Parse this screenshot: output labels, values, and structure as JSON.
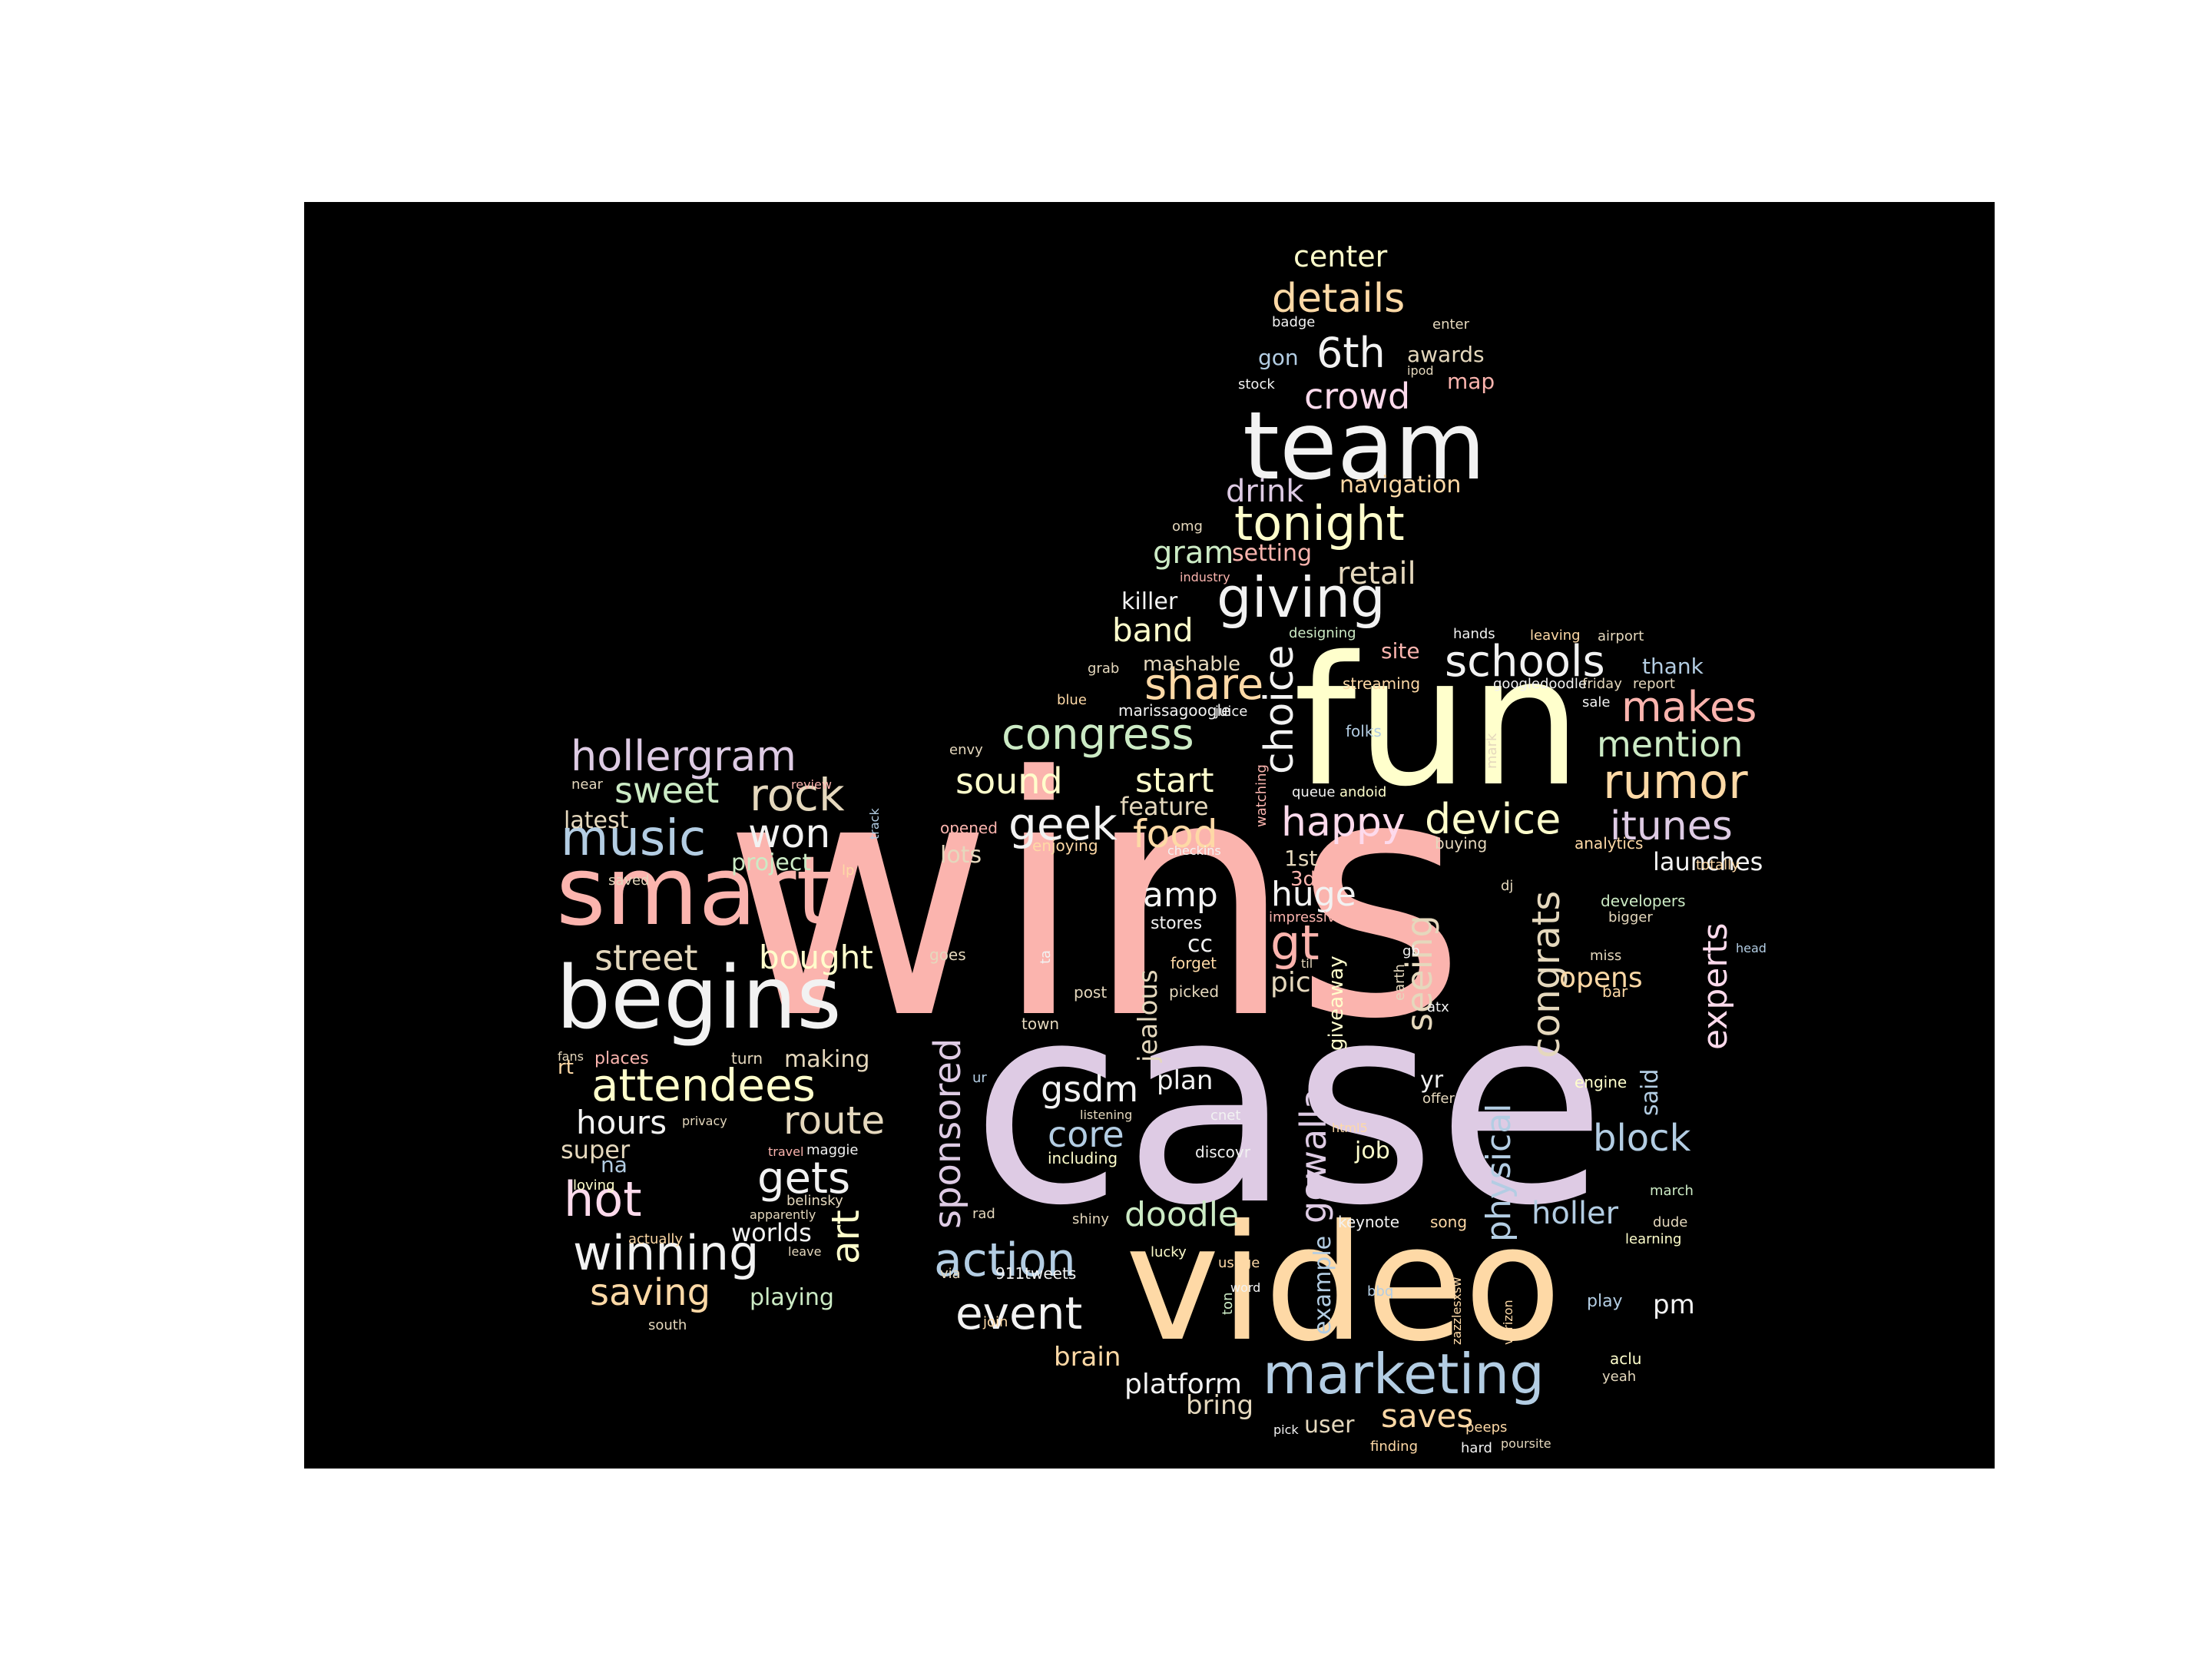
{
  "palette": [
    "#fbb4ae",
    "#b3cde3",
    "#ccebc5",
    "#decbe4",
    "#fed9a6",
    "#ffffcc",
    "#e5d8bd",
    "#fddaec",
    "#f2f2f2"
  ],
  "words": [
    {
      "text": "wins",
      "color": "#fbb4ae"
    },
    {
      "text": "case",
      "color": "#decbe4"
    },
    {
      "text": "fun",
      "color": "#ffffcc"
    },
    {
      "text": "video",
      "color": "#fed9a6"
    },
    {
      "text": "team",
      "color": "#f2f2f2"
    },
    {
      "text": "smart",
      "color": "#fbb4ae"
    },
    {
      "text": "begins",
      "color": "#f2f2f2"
    },
    {
      "text": "marketing",
      "color": "#b3cde3"
    },
    {
      "text": "tonight",
      "color": "#ffffcc"
    },
    {
      "text": "giving",
      "color": "#f2f2f2"
    },
    {
      "text": "schools",
      "color": "#f2f2f2"
    },
    {
      "text": "details",
      "color": "#fed9a6"
    },
    {
      "text": "6th",
      "color": "#f2f2f2"
    },
    {
      "text": "crowd",
      "color": "#fddaec"
    },
    {
      "text": "center",
      "color": "#ffffcc"
    },
    {
      "text": "drink",
      "color": "#decbe4"
    },
    {
      "text": "navigation",
      "color": "#fed9a6"
    },
    {
      "text": "gram",
      "color": "#ccebc5"
    },
    {
      "text": "setting",
      "color": "#fbb4ae"
    },
    {
      "text": "retail",
      "color": "#e5d8bd"
    },
    {
      "text": "band",
      "color": "#ffffcc"
    },
    {
      "text": "killer",
      "color": "#f2f2f2"
    },
    {
      "text": "share",
      "color": "#fed9a6"
    },
    {
      "text": "congress",
      "color": "#ccebc5"
    },
    {
      "text": "choice",
      "color": "#f2f2f2"
    },
    {
      "text": "makes",
      "color": "#fbb4ae"
    },
    {
      "text": "mention",
      "color": "#ccebc5"
    },
    {
      "text": "rumor",
      "color": "#fed9a6"
    },
    {
      "text": "itunes",
      "color": "#decbe4"
    },
    {
      "text": "device",
      "color": "#ffffcc"
    },
    {
      "text": "happy",
      "color": "#fddaec"
    },
    {
      "text": "geek",
      "color": "#f2f2f2"
    },
    {
      "text": "food",
      "color": "#fed9a6"
    },
    {
      "text": "sound",
      "color": "#ffffcc"
    },
    {
      "text": "start",
      "color": "#ffffcc"
    },
    {
      "text": "feature",
      "color": "#e5d8bd"
    },
    {
      "text": "launches",
      "color": "#f2f2f2"
    },
    {
      "text": "hollergram",
      "color": "#decbe4"
    },
    {
      "text": "sweet",
      "color": "#ccebc5"
    },
    {
      "text": "rock",
      "color": "#e5d8bd"
    },
    {
      "text": "music",
      "color": "#b3cde3"
    },
    {
      "text": "won",
      "color": "#f2f2f2"
    },
    {
      "text": "latest",
      "color": "#e5d8bd"
    },
    {
      "text": "project",
      "color": "#ccebc5"
    },
    {
      "text": "street",
      "color": "#e5d8bd"
    },
    {
      "text": "bought",
      "color": "#ffffcc"
    },
    {
      "text": "attendees",
      "color": "#ffffcc"
    },
    {
      "text": "route",
      "color": "#e5d8bd"
    },
    {
      "text": "hours",
      "color": "#f2f2f2"
    },
    {
      "text": "making",
      "color": "#e5d8bd"
    },
    {
      "text": "super",
      "color": "#e5d8bd"
    },
    {
      "text": "gets",
      "color": "#f2f2f2"
    },
    {
      "text": "hot",
      "color": "#fddaec"
    },
    {
      "text": "art",
      "color": "#ffffcc"
    },
    {
      "text": "winning",
      "color": "#f2f2f2"
    },
    {
      "text": "saving",
      "color": "#fed9a6"
    },
    {
      "text": "playing",
      "color": "#ccebc5"
    },
    {
      "text": "worlds",
      "color": "#f2f2f2"
    },
    {
      "text": "amp",
      "color": "#f2f2f2"
    },
    {
      "text": "huge",
      "color": "#f2f2f2"
    },
    {
      "text": "gt",
      "color": "#fbb4ae"
    },
    {
      "text": "pic",
      "color": "#e5d8bd"
    },
    {
      "text": "seeing",
      "color": "#e5d8bd"
    },
    {
      "text": "congrats",
      "color": "#e5d8bd"
    },
    {
      "text": "experts",
      "color": "#fddaec"
    },
    {
      "text": "opens",
      "color": "#fed9a6"
    },
    {
      "text": "sponsored",
      "color": "#decbe4"
    },
    {
      "text": "jealous",
      "color": "#e5d8bd"
    },
    {
      "text": "gowalla",
      "color": "#decbe4"
    },
    {
      "text": "physical",
      "color": "#b3cde3"
    },
    {
      "text": "gsdm",
      "color": "#f2f2f2"
    },
    {
      "text": "core",
      "color": "#b3cde3"
    },
    {
      "text": "plan",
      "color": "#f2f2f2"
    },
    {
      "text": "block",
      "color": "#b3cde3"
    },
    {
      "text": "doodle",
      "color": "#ccebc5"
    },
    {
      "text": "action",
      "color": "#b3cde3"
    },
    {
      "text": "holler",
      "color": "#b3cde3"
    },
    {
      "text": "event",
      "color": "#f2f2f2"
    },
    {
      "text": "brain",
      "color": "#fed9a6"
    },
    {
      "text": "platform",
      "color": "#f2f2f2"
    },
    {
      "text": "bring",
      "color": "#e5d8bd"
    },
    {
      "text": "saves",
      "color": "#fed9a6"
    },
    {
      "text": "pm",
      "color": "#f2f2f2"
    },
    {
      "text": "said",
      "color": "#b3cde3"
    },
    {
      "text": "example",
      "color": "#b3cde3"
    },
    {
      "text": "job",
      "color": "#ffffcc"
    },
    {
      "text": "user",
      "color": "#e5d8bd"
    },
    {
      "text": "yr",
      "color": "#f2f2f2"
    },
    {
      "text": "lots",
      "color": "#e5d8bd"
    },
    {
      "text": "stores",
      "color": "#f2f2f2"
    },
    {
      "text": "cc",
      "color": "#f2f2f2"
    },
    {
      "text": "giveaway",
      "color": "#ffffcc"
    },
    {
      "text": "3d",
      "color": "#fbb4ae"
    },
    {
      "text": "1st",
      "color": "#e5d8bd"
    },
    {
      "text": "gon",
      "color": "#b3cde3"
    },
    {
      "text": "awards",
      "color": "#e5d8bd"
    },
    {
      "text": "map",
      "color": "#fbb4ae"
    },
    {
      "text": "mashable",
      "color": "#e5d8bd"
    },
    {
      "text": "site",
      "color": "#fbb4ae"
    },
    {
      "text": "thank",
      "color": "#b3cde3"
    },
    {
      "text": "badge",
      "color": "#f2f2f2"
    },
    {
      "text": "enter",
      "color": "#e5d8bd"
    },
    {
      "text": "ipod",
      "color": "#e5d8bd"
    },
    {
      "text": "stock",
      "color": "#f2f2f2"
    },
    {
      "text": "omg",
      "color": "#e5d8bd"
    },
    {
      "text": "industry",
      "color": "#fbb4ae"
    },
    {
      "text": "designing",
      "color": "#ccebc5"
    },
    {
      "text": "hands",
      "color": "#f2f2f2"
    },
    {
      "text": "leaving",
      "color": "#fed9a6"
    },
    {
      "text": "airport",
      "color": "#e5d8bd"
    },
    {
      "text": "grab",
      "color": "#e5d8bd"
    },
    {
      "text": "streaming",
      "color": "#fed9a6"
    },
    {
      "text": "googledoodle",
      "color": "#f2f2f2"
    },
    {
      "text": "friday",
      "color": "#e5d8bd"
    },
    {
      "text": "report",
      "color": "#e5d8bd"
    },
    {
      "text": "blue",
      "color": "#fed9a6"
    },
    {
      "text": "marissagoogle",
      "color": "#f2f2f2"
    },
    {
      "text": "juice",
      "color": "#f2f2f2"
    },
    {
      "text": "sale",
      "color": "#f2f2f2"
    },
    {
      "text": "envy",
      "color": "#e5d8bd"
    },
    {
      "text": "folks",
      "color": "#b3cde3"
    },
    {
      "text": "mark",
      "color": "#e5d8bd"
    },
    {
      "text": "queue",
      "color": "#f2f2f2"
    },
    {
      "text": "andoid",
      "color": "#ffffcc"
    },
    {
      "text": "watching",
      "color": "#fbb4ae"
    },
    {
      "text": "opened",
      "color": "#fbb4ae"
    },
    {
      "text": "enjoying",
      "color": "#fed9a6"
    },
    {
      "text": "checkins",
      "color": "#f2f2f2"
    },
    {
      "text": "buying",
      "color": "#e5d8bd"
    },
    {
      "text": "analytics",
      "color": "#fed9a6"
    },
    {
      "text": "totally",
      "color": "#fed9a6"
    },
    {
      "text": "impressive",
      "color": "#fbb4ae"
    },
    {
      "text": "dj",
      "color": "#e5d8bd"
    },
    {
      "text": "developers",
      "color": "#ccebc5"
    },
    {
      "text": "bigger",
      "color": "#e5d8bd"
    },
    {
      "text": "head",
      "color": "#b3cde3"
    },
    {
      "text": "goes",
      "color": "#e5d8bd"
    },
    {
      "text": "ta",
      "color": "#f2f2f2"
    },
    {
      "text": "forget",
      "color": "#fed9a6"
    },
    {
      "text": "til",
      "color": "#e5d8bd"
    },
    {
      "text": "gb",
      "color": "#f2f2f2"
    },
    {
      "text": "earth",
      "color": "#e5d8bd"
    },
    {
      "text": "miss",
      "color": "#e5d8bd"
    },
    {
      "text": "bar",
      "color": "#fed9a6"
    },
    {
      "text": "post",
      "color": "#e5d8bd"
    },
    {
      "text": "picked",
      "color": "#e5d8bd"
    },
    {
      "text": "atx",
      "color": "#f2f2f2"
    },
    {
      "text": "town",
      "color": "#e5d8bd"
    },
    {
      "text": "ur",
      "color": "#b3cde3"
    },
    {
      "text": "listening",
      "color": "#e5d8bd"
    },
    {
      "text": "html5",
      "color": "#fed9a6"
    },
    {
      "text": "offer",
      "color": "#e5d8bd"
    },
    {
      "text": "engine",
      "color": "#ffffcc"
    },
    {
      "text": "cnet",
      "color": "#f2f2f2"
    },
    {
      "text": "discovr",
      "color": "#f2f2f2"
    },
    {
      "text": "including",
      "color": "#ffffcc"
    },
    {
      "text": "march",
      "color": "#ccebc5"
    },
    {
      "text": "rad",
      "color": "#e5d8bd"
    },
    {
      "text": "shiny",
      "color": "#e5d8bd"
    },
    {
      "text": "keynote",
      "color": "#f2f2f2"
    },
    {
      "text": "song",
      "color": "#fed9a6"
    },
    {
      "text": "dude",
      "color": "#e5d8bd"
    },
    {
      "text": "learning",
      "color": "#ffffcc"
    },
    {
      "text": "lucky",
      "color": "#ffffcc"
    },
    {
      "text": "usage",
      "color": "#fed9a6"
    },
    {
      "text": "via",
      "color": "#e5d8bd"
    },
    {
      "text": "911tweets",
      "color": "#f2f2f2"
    },
    {
      "text": "word",
      "color": "#f2f2f2"
    },
    {
      "text": "ton",
      "color": "#ccebc5"
    },
    {
      "text": "bbq",
      "color": "#b3cde3"
    },
    {
      "text": "zazzlesxsw",
      "color": "#fed9a6"
    },
    {
      "text": "verizon",
      "color": "#fed9a6"
    },
    {
      "text": "play",
      "color": "#b3cde3"
    },
    {
      "text": "join",
      "color": "#fed9a6"
    },
    {
      "text": "aclu",
      "color": "#ffffcc"
    },
    {
      "text": "yeah",
      "color": "#e5d8bd"
    },
    {
      "text": "pick",
      "color": "#f2f2f2"
    },
    {
      "text": "peeps",
      "color": "#fed9a6"
    },
    {
      "text": "finding",
      "color": "#fed9a6"
    },
    {
      "text": "hard",
      "color": "#f2f2f2"
    },
    {
      "text": "poursite",
      "color": "#e5d8bd"
    },
    {
      "text": "near",
      "color": "#e5d8bd"
    },
    {
      "text": "review",
      "color": "#fbb4ae"
    },
    {
      "text": "track",
      "color": "#b3cde3"
    },
    {
      "text": "lp",
      "color": "#fed9a6"
    },
    {
      "text": "saved",
      "color": "#e5d8bd"
    },
    {
      "text": "fans",
      "color": "#e5d8bd"
    },
    {
      "text": "rt",
      "color": "#fed9a6"
    },
    {
      "text": "places",
      "color": "#fbb4ae"
    },
    {
      "text": "turn",
      "color": "#e5d8bd"
    },
    {
      "text": "privacy",
      "color": "#e5d8bd"
    },
    {
      "text": "na",
      "color": "#b3cde3"
    },
    {
      "text": "travel",
      "color": "#fbb4ae"
    },
    {
      "text": "maggie",
      "color": "#f2f2f2"
    },
    {
      "text": "loving",
      "color": "#ffffcc"
    },
    {
      "text": "belinsky",
      "color": "#e5d8bd"
    },
    {
      "text": "apparently",
      "color": "#e5d8bd"
    },
    {
      "text": "actually",
      "color": "#fed9a6"
    },
    {
      "text": "leave",
      "color": "#e5d8bd"
    },
    {
      "text": "south",
      "color": "#e5d8bd"
    }
  ]
}
